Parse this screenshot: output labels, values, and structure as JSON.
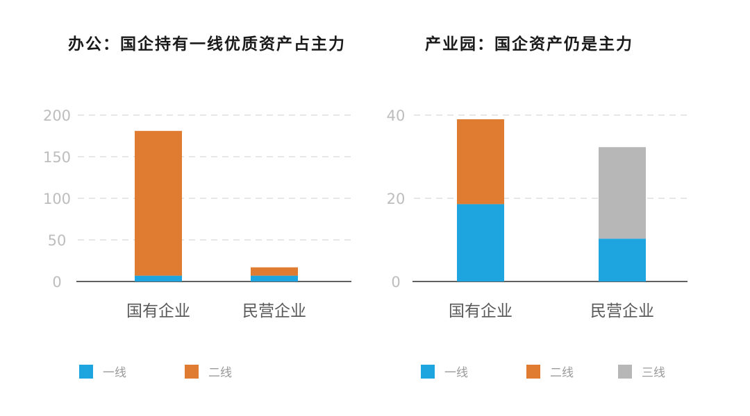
{
  "colors": {
    "一线": "#1ea5df",
    "二线": "#e07b32",
    "三线": "#b7b7b7"
  },
  "chart_data": [
    {
      "type": "bar",
      "stacked": true,
      "title": "办公：国企持有一线优质资产占主力",
      "categories": [
        "国有企业",
        "民营企业"
      ],
      "series": [
        {
          "name": "一线",
          "values": [
            7,
            7
          ]
        },
        {
          "name": "二线",
          "values": [
            174,
            10
          ]
        }
      ],
      "ylim": [
        0,
        200
      ],
      "yticks": [
        "0",
        "50",
        "100",
        "150",
        "200"
      ],
      "grid": true,
      "legend": "bottom"
    },
    {
      "type": "bar",
      "stacked": true,
      "title": "产业园：国企资产仍是主力",
      "categories": [
        "国有企业",
        "民营企业"
      ],
      "series": [
        {
          "name": "一线",
          "values": [
            18.6,
            10.3
          ]
        },
        {
          "name": "二线",
          "values": [
            20.4,
            0
          ]
        },
        {
          "name": "三线",
          "values": [
            0,
            22
          ]
        }
      ],
      "ylim": [
        0,
        40
      ],
      "yticks": [
        "0",
        "20",
        "40"
      ],
      "grid": true,
      "legend": "bottom"
    }
  ]
}
